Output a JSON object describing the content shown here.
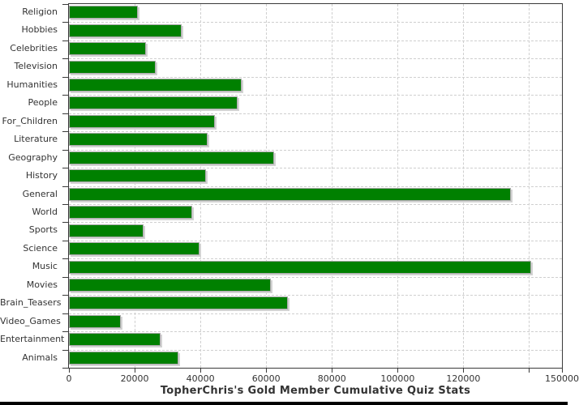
{
  "chart_data": {
    "type": "bar",
    "orientation": "horizontal",
    "title": "TopherChris's Gold Member Cumulative Quiz Stats",
    "categories": [
      "Religion",
      "Hobbies",
      "Celebrities",
      "Television",
      "Humanities",
      "People",
      "For_Children",
      "Literature",
      "Geography",
      "History",
      "General",
      "World",
      "Sports",
      "Science",
      "Music",
      "Movies",
      "Brain_Teasers",
      "Video_Games",
      "Entertainment",
      "Animals"
    ],
    "values": [
      21000,
      34300,
      23400,
      26500,
      52500,
      51200,
      44500,
      42200,
      62400,
      41700,
      134500,
      37400,
      22800,
      39800,
      140700,
      61400,
      66500,
      15800,
      28000,
      33200
    ],
    "xlabel": "TopherChris's Gold Member Cumulative Quiz Stats",
    "ylabel": "",
    "xlim": [
      0,
      150000
    ],
    "x_ticks": [
      {
        "value": 0,
        "label": "0"
      },
      {
        "value": 20000,
        "label": "20000"
      },
      {
        "value": 40000,
        "label": "40000"
      },
      {
        "value": 60000,
        "label": "60000"
      },
      {
        "value": 80000,
        "label": "80000"
      },
      {
        "value": 100000,
        "label": "100000"
      },
      {
        "value": 120000,
        "label": "120000"
      },
      {
        "value": 140000,
        "label": ""
      },
      {
        "value": 150000,
        "label": "150000"
      }
    ],
    "grid": "dashed",
    "legend": "none",
    "colors": {
      "bar_fill": "#008000",
      "bar_outline": "#a8a8a8",
      "bar_shadow": "#d2d2d2",
      "gridline": "#cfcfcf",
      "axis": "#3a3a3a",
      "text": "#333333",
      "background": "#ffffff",
      "bottom_strip": "#000000"
    }
  }
}
